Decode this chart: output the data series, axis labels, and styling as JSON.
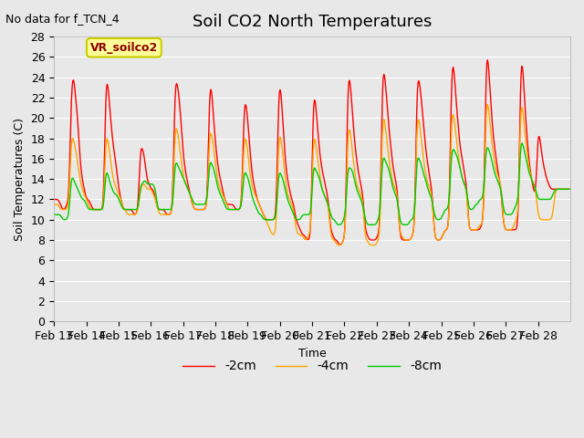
{
  "title": "Soil CO2 North Temperatures",
  "subtitle": "No data for f_TCN_4",
  "xlabel": "Time",
  "ylabel": "Soil Temperatures (C)",
  "ylim": [
    0,
    28
  ],
  "yticks": [
    0,
    2,
    4,
    6,
    8,
    10,
    12,
    14,
    16,
    18,
    20,
    22,
    24,
    26,
    28
  ],
  "xtick_labels": [
    "Feb 13",
    "Feb 14",
    "Feb 15",
    "Feb 16",
    "Feb 17",
    "Feb 18",
    "Feb 19",
    "Feb 20",
    "Feb 21",
    "Feb 22",
    "Feb 23",
    "Feb 24",
    "Feb 25",
    "Feb 26",
    "Feb 27",
    "Feb 28"
  ],
  "legend_label": "VR_soilco2",
  "series_labels": [
    "-2cm",
    "-4cm",
    "-8cm"
  ],
  "series_colors": [
    "#ff0000",
    "#ffa500",
    "#00cc00"
  ],
  "background_color": "#e8e8e8",
  "plot_bg_color": "#e8e8e8",
  "grid_color": "#ffffff",
  "title_fontsize": 13,
  "label_fontsize": 9,
  "tick_fontsize": 9,
  "legend_box_color": "#ffff99",
  "legend_border_color": "#cccc00"
}
